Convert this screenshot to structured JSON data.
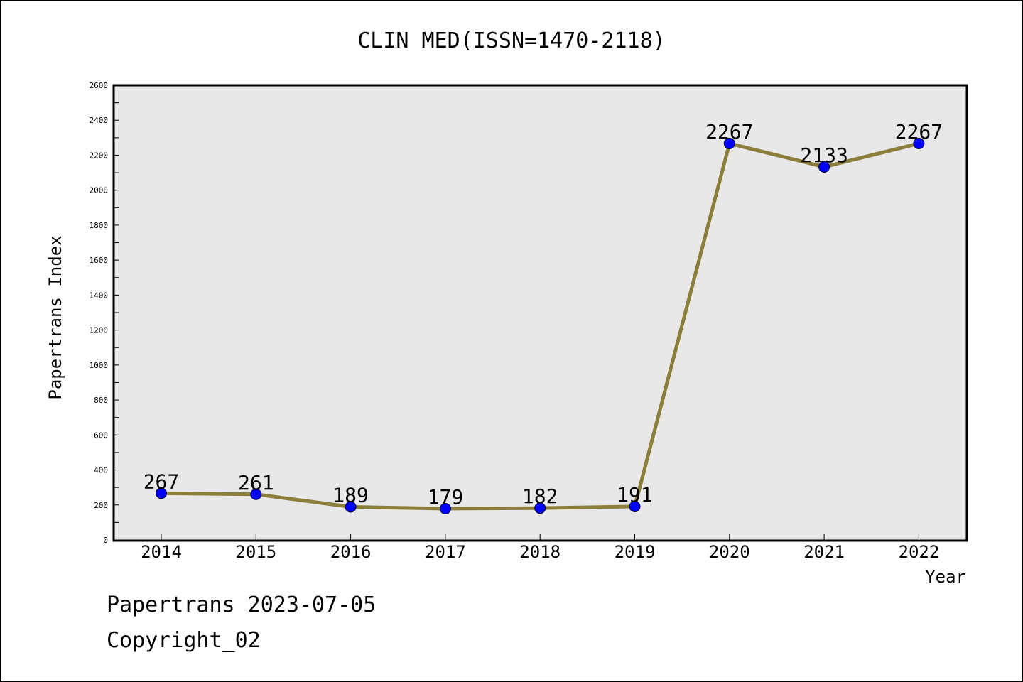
{
  "chart_data": {
    "type": "line",
    "title": "CLIN MED(ISSN=1470-2118)",
    "xlabel": "Year",
    "ylabel": "Papertrans Index",
    "categories": [
      "2014",
      "2015",
      "2016",
      "2017",
      "2018",
      "2019",
      "2020",
      "2021",
      "2022"
    ],
    "series": [
      {
        "values": [
          267,
          261,
          189,
          179,
          182,
          191,
          2267,
          2133,
          2267
        ]
      }
    ],
    "data_labels": [
      "267",
      "261",
      "189",
      "179",
      "182",
      "191",
      "2267",
      "2133",
      "2267"
    ],
    "ylim": [
      0,
      2600
    ],
    "yticks": [
      0,
      200,
      400,
      600,
      800,
      1000,
      1200,
      1400,
      1600,
      1800,
      2000,
      2200,
      2400,
      2600
    ],
    "grid": false,
    "colors": {
      "line": "#8B7D3A",
      "marker": "#0000FF",
      "plot_background": "#E8E8E8"
    }
  },
  "footer": {
    "date_text": "Papertrans 2023-07-05",
    "copyright_text": "Copyright_02"
  }
}
